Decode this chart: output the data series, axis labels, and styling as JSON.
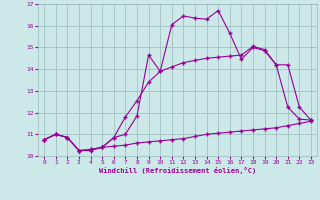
{
  "title": "",
  "xlabel": "Windchill (Refroidissement éolien,°C)",
  "ylabel": "",
  "xlim": [
    -0.5,
    23.5
  ],
  "ylim": [
    10,
    17
  ],
  "xticks": [
    0,
    1,
    2,
    3,
    4,
    5,
    6,
    7,
    8,
    9,
    10,
    11,
    12,
    13,
    14,
    15,
    16,
    17,
    18,
    19,
    20,
    21,
    22,
    23
  ],
  "yticks": [
    10,
    11,
    12,
    13,
    14,
    15,
    16,
    17
  ],
  "background_color": "#cce8e8",
  "line_color": "#990099",
  "grid_color": "#99bbbb",
  "line1_x": [
    0,
    1,
    2,
    3,
    4,
    5,
    6,
    7,
    8,
    9,
    10,
    11,
    12,
    13,
    14,
    15,
    16,
    17,
    18,
    19,
    20,
    21,
    22,
    23
  ],
  "line1_y": [
    10.75,
    11.0,
    10.85,
    10.25,
    10.25,
    10.4,
    10.45,
    10.5,
    10.6,
    10.65,
    10.7,
    10.75,
    10.8,
    10.9,
    11.0,
    11.05,
    11.1,
    11.15,
    11.2,
    11.25,
    11.3,
    11.4,
    11.5,
    11.6
  ],
  "line2_x": [
    0,
    1,
    2,
    3,
    4,
    5,
    6,
    7,
    8,
    9,
    10,
    11,
    12,
    13,
    14,
    15,
    16,
    17,
    18,
    19,
    20,
    21,
    22,
    23
  ],
  "line2_y": [
    10.75,
    11.0,
    10.85,
    10.25,
    10.3,
    10.4,
    10.85,
    11.8,
    12.55,
    13.4,
    13.9,
    14.1,
    14.3,
    14.4,
    14.5,
    14.55,
    14.6,
    14.65,
    15.05,
    14.9,
    14.2,
    12.25,
    11.7,
    11.65
  ],
  "line3_x": [
    0,
    1,
    2,
    3,
    4,
    5,
    6,
    7,
    8,
    9,
    10,
    11,
    12,
    13,
    14,
    15,
    16,
    17,
    18,
    19,
    20,
    21,
    22,
    23
  ],
  "line3_y": [
    10.75,
    11.0,
    10.85,
    10.25,
    10.3,
    10.4,
    10.85,
    11.0,
    11.85,
    14.65,
    13.9,
    16.05,
    16.45,
    16.35,
    16.3,
    16.7,
    15.65,
    14.45,
    15.0,
    14.85,
    14.2,
    14.2,
    12.25,
    11.65
  ],
  "marker": "+",
  "markersize": 3.5,
  "markeredgewidth": 1.0,
  "linewidth": 0.8
}
